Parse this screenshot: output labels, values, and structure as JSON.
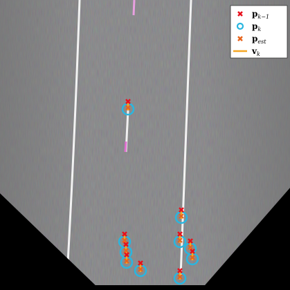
{
  "legend": {
    "items": [
      {
        "symbol": "p",
        "subscript": "k−1"
      },
      {
        "symbol": "p",
        "subscript": "k"
      },
      {
        "symbol": "p",
        "subscript": "est"
      },
      {
        "symbol": "v",
        "subscript": "k"
      }
    ]
  }
}
